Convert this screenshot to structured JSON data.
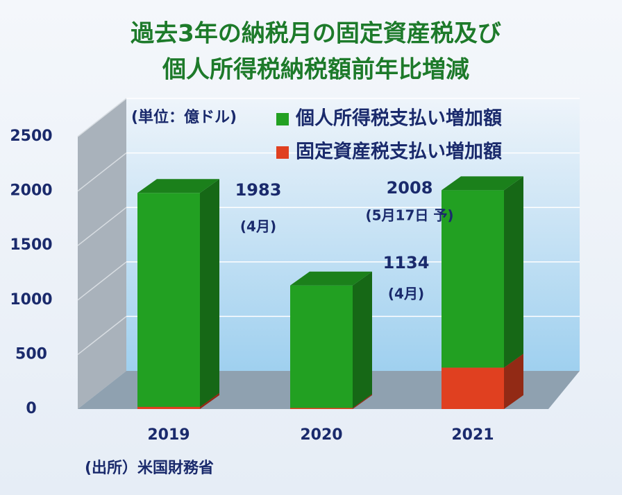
{
  "chart_data": {
    "type": "bar3d_stacked",
    "title": [
      "過去3年の納税月の固定資産税及び",
      "個人所得税納税額前年比増減"
    ],
    "unit": "(単位：億ドル)",
    "source": "(出所）米国財務省",
    "categories": [
      "2019",
      "2020",
      "2021"
    ],
    "series": [
      {
        "name": "個人所得税支払い増加額",
        "color": "#22a022",
        "values": [
          1963,
          1124,
          1628
        ]
      },
      {
        "name": "固定資産税支払い増加額",
        "color": "#e04020",
        "values": [
          20,
          10,
          380
        ]
      }
    ],
    "totals": [
      1983,
      1134,
      2008
    ],
    "total_notes": [
      "(4月)",
      "(4月)",
      "(5月17日 予)"
    ],
    "ylim": [
      0,
      2500
    ],
    "yticks": [
      0,
      500,
      1000,
      1500,
      2000,
      2500
    ],
    "grid": true
  }
}
